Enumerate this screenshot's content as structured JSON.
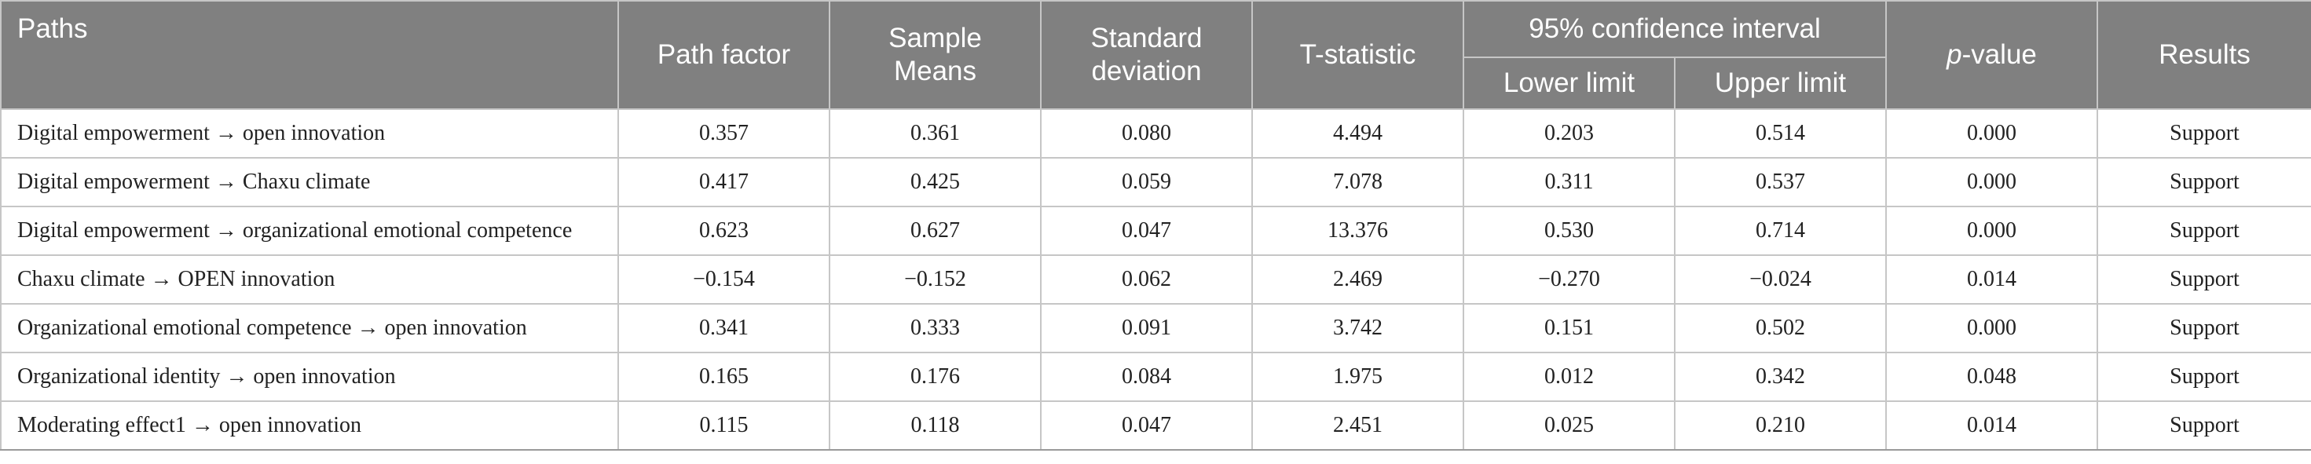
{
  "table": {
    "headers": {
      "paths": "Paths",
      "path_factor": "Path factor",
      "sample_means_line1": "Sample",
      "sample_means_line2": "Means",
      "std_dev_line1": "Standard",
      "std_dev_line2": "deviation",
      "t_statistic": "T-statistic",
      "ci": "95% confidence interval",
      "ci_lower": "Lower limit",
      "ci_upper": "Upper limit",
      "p_value_italic": "p",
      "p_value_rest": "-value",
      "results": "Results"
    },
    "rows": [
      {
        "path": "Digital empowerment → open innovation",
        "path_factor": "0.357",
        "sample_mean": "0.361",
        "std_dev": "0.080",
        "t": "4.494",
        "lower": "0.203",
        "upper": "0.514",
        "p": "0.000",
        "result": "Support"
      },
      {
        "path": "Digital empowerment → Chaxu climate",
        "path_factor": "0.417",
        "sample_mean": "0.425",
        "std_dev": "0.059",
        "t": "7.078",
        "lower": "0.311",
        "upper": "0.537",
        "p": "0.000",
        "result": "Support"
      },
      {
        "path": "Digital empowerment → organizational emotional competence",
        "path_factor": "0.623",
        "sample_mean": "0.627",
        "std_dev": "0.047",
        "t": "13.376",
        "lower": "0.530",
        "upper": "0.714",
        "p": "0.000",
        "result": "Support"
      },
      {
        "path": "Chaxu climate → OPEN innovation",
        "path_factor": "−0.154",
        "sample_mean": "−0.152",
        "std_dev": "0.062",
        "t": "2.469",
        "lower": "−0.270",
        "upper": "−0.024",
        "p": "0.014",
        "result": "Support"
      },
      {
        "path": "Organizational emotional competence → open innovation",
        "path_factor": "0.341",
        "sample_mean": "0.333",
        "std_dev": "0.091",
        "t": "3.742",
        "lower": "0.151",
        "upper": "0.502",
        "p": "0.000",
        "result": "Support"
      },
      {
        "path": "Organizational identity → open innovation",
        "path_factor": "0.165",
        "sample_mean": "0.176",
        "std_dev": "0.084",
        "t": "1.975",
        "lower": "0.012",
        "upper": "0.342",
        "p": "0.048",
        "result": "Support"
      },
      {
        "path": "Moderating effect1 → open innovation",
        "path_factor": "0.115",
        "sample_mean": "0.118",
        "std_dev": "0.047",
        "t": "2.451",
        "lower": "0.025",
        "upper": "0.210",
        "p": "0.014",
        "result": "Support"
      }
    ]
  }
}
